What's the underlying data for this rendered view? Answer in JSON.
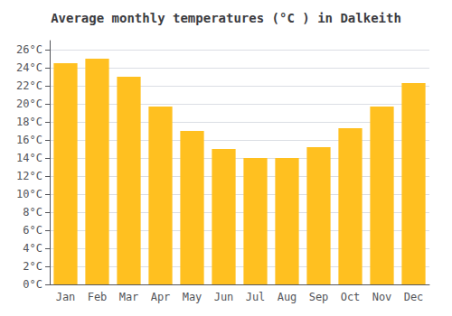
{
  "chart_data": {
    "type": "bar",
    "title": "Average monthly temperatures (°C ) in Dalkeith",
    "categories": [
      "Jan",
      "Feb",
      "Mar",
      "Apr",
      "May",
      "Jun",
      "Jul",
      "Aug",
      "Sep",
      "Oct",
      "Nov",
      "Dec"
    ],
    "values": [
      24.5,
      25.0,
      23.0,
      19.7,
      17.0,
      15.0,
      14.0,
      14.0,
      15.2,
      17.3,
      19.7,
      22.3
    ],
    "color": "#FFC020",
    "ylim": [
      0,
      27
    ],
    "yticks": [
      {
        "value": 0,
        "label": "0°C"
      },
      {
        "value": 2,
        "label": "2°C"
      },
      {
        "value": 4,
        "label": "4°C"
      },
      {
        "value": 6,
        "label": "6°C"
      },
      {
        "value": 8,
        "label": "8°C"
      },
      {
        "value": 10,
        "label": "10°C"
      },
      {
        "value": 12,
        "label": "12°C"
      },
      {
        "value": 14,
        "label": "14°C"
      },
      {
        "value": 16,
        "label": "16°C"
      },
      {
        "value": 18,
        "label": "18°C"
      },
      {
        "value": 20,
        "label": "20°C"
      },
      {
        "value": 22,
        "label": "22°C"
      },
      {
        "value": 24,
        "label": "24°C"
      },
      {
        "value": 26,
        "label": "26°C"
      }
    ],
    "grid": true
  }
}
